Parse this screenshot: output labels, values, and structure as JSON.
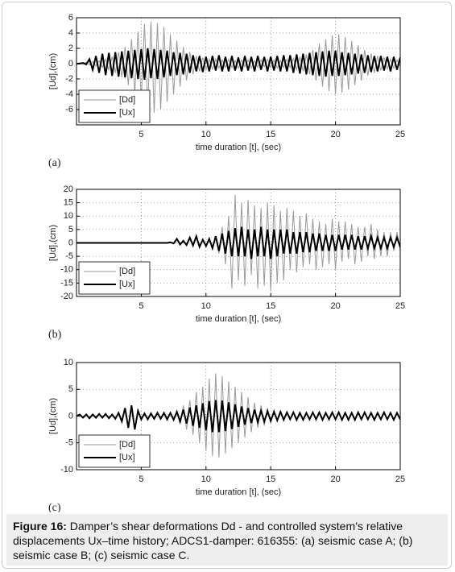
{
  "chart_data": [
    {
      "type": "line",
      "label": "(a)",
      "x_label": "time duration [t], (sec)",
      "y_label": "[Ud],(cm)",
      "xlim": [
        0,
        25
      ],
      "xticks": [
        5,
        10,
        15,
        20,
        25
      ],
      "ylim": [
        -8,
        6
      ],
      "yticks": [
        -6,
        -4,
        -2,
        0,
        2,
        4,
        6
      ],
      "grid": true,
      "legend": "lower left",
      "x": [
        0,
        0.25,
        0.5,
        0.75,
        1,
        1.25,
        1.5,
        1.75,
        2,
        2.25,
        2.5,
        2.75,
        3,
        3.25,
        3.5,
        3.75,
        4,
        4.25,
        4.5,
        4.75,
        5,
        5.25,
        5.5,
        5.75,
        6,
        6.25,
        6.5,
        6.75,
        7,
        7.25,
        7.5,
        7.75,
        8,
        8.25,
        8.5,
        8.75,
        9,
        9.25,
        9.5,
        9.75,
        10,
        10.25,
        10.5,
        10.75,
        11,
        11.25,
        11.5,
        11.75,
        12,
        12.25,
        12.5,
        12.75,
        13,
        13.25,
        13.5,
        13.75,
        14,
        14.25,
        14.5,
        14.75,
        15,
        15.25,
        15.5,
        15.75,
        16,
        16.25,
        16.5,
        16.75,
        17,
        17.25,
        17.5,
        17.75,
        18,
        18.25,
        18.5,
        18.75,
        19,
        19.25,
        19.5,
        19.75,
        20,
        20.25,
        20.5,
        20.75,
        21,
        21.25,
        21.5,
        21.75,
        22,
        22.25,
        22.5,
        22.75,
        23,
        23.25,
        23.5,
        23.75,
        24,
        24.25,
        24.5,
        24.75,
        25
      ],
      "series": [
        {
          "name": "[Dd]",
          "color": "#999999",
          "width": 1,
          "values": [
            0,
            0.1,
            -0.1,
            0.2,
            -0.2,
            0.3,
            -0.3,
            0.4,
            -0.5,
            0.6,
            -0.8,
            0.9,
            -1.2,
            1.5,
            -1.8,
            2.2,
            -2.8,
            3.2,
            -3.8,
            4.2,
            -4.8,
            5.2,
            -5.6,
            5.5,
            -6.4,
            5.3,
            -6,
            4.8,
            -5,
            3.8,
            -4,
            3,
            -3,
            2.2,
            -2.2,
            1.5,
            -1.4,
            1,
            -1,
            0.8,
            -0.8,
            0.6,
            -0.7,
            0.6,
            -0.6,
            0.5,
            -0.5,
            0.6,
            -0.5,
            0.4,
            -0.6,
            0.5,
            -0.4,
            0.5,
            -0.6,
            0.4,
            -0.5,
            0.5,
            -0.4,
            0.6,
            -0.5,
            0.5,
            -0.6,
            0.4,
            -0.5,
            0.6,
            -0.5,
            0.7,
            -0.8,
            0.9,
            -1,
            1.2,
            -1.4,
            1.8,
            -2.2,
            2.6,
            -3,
            3.2,
            -3.6,
            3.7,
            -4,
            3.8,
            -3.8,
            3.5,
            -3.4,
            3,
            -2.8,
            2.4,
            -2.2,
            1.8,
            -1.6,
            1.3,
            -1.2,
            1,
            -0.9,
            0.8,
            -0.7,
            0.6,
            -0.6,
            0.5,
            -0.4
          ]
        },
        {
          "name": "[Ux]",
          "color": "#000000",
          "width": 2,
          "values": [
            0,
            0,
            0.1,
            -0.1,
            0.6,
            -0.8,
            1,
            -1.2,
            1.3,
            -1.5,
            1.4,
            -1.6,
            1.5,
            -1.7,
            1.6,
            -1.8,
            1.7,
            -1.9,
            1.8,
            -2,
            1.9,
            -2.1,
            2,
            -1.9,
            1.9,
            -2,
            1.8,
            -1.8,
            1.7,
            -1.6,
            1.5,
            -1.5,
            1.4,
            -1.4,
            1.3,
            -1.2,
            1.1,
            -1,
            1,
            -1.1,
            0.9,
            -1,
            1,
            -0.9,
            1.1,
            -1,
            0.9,
            -1,
            1,
            -0.9,
            0.8,
            -1,
            1,
            -0.9,
            0.9,
            -1,
            1,
            -0.8,
            0.9,
            -1,
            0.9,
            -0.9,
            1,
            -1,
            1.1,
            -1,
            1.1,
            -1.2,
            1.2,
            -1.3,
            1.3,
            -1.4,
            1.4,
            -1.5,
            1.5,
            -1.6,
            1.6,
            -1.7,
            1.7,
            -1.6,
            1.7,
            -1.6,
            1.5,
            -1.5,
            1.4,
            -1.4,
            1.3,
            -1.3,
            1.2,
            -1.2,
            1.1,
            -1.1,
            1,
            -1,
            1,
            -0.9,
            0.9,
            -1,
            0.9,
            -0.8,
            0.8
          ]
        }
      ]
    },
    {
      "type": "line",
      "label": "(b)",
      "x_label": "time duration [t], (sec)",
      "y_label": "[Ud],(cm)",
      "xlim": [
        0,
        25
      ],
      "xticks": [
        5,
        10,
        15,
        20,
        25
      ],
      "ylim": [
        -20,
        20
      ],
      "yticks": [
        -20,
        -15,
        -10,
        -5,
        0,
        5,
        10,
        15,
        20
      ],
      "grid": true,
      "legend": "lower left",
      "x": [
        0,
        0.25,
        0.5,
        0.75,
        1,
        1.25,
        1.5,
        1.75,
        2,
        2.25,
        2.5,
        2.75,
        3,
        3.25,
        3.5,
        3.75,
        4,
        4.25,
        4.5,
        4.75,
        5,
        5.25,
        5.5,
        5.75,
        6,
        6.25,
        6.5,
        6.75,
        7,
        7.25,
        7.5,
        7.75,
        8,
        8.25,
        8.5,
        8.75,
        9,
        9.25,
        9.5,
        9.75,
        10,
        10.25,
        10.5,
        10.75,
        11,
        11.25,
        11.5,
        11.75,
        12,
        12.25,
        12.5,
        12.75,
        13,
        13.25,
        13.5,
        13.75,
        14,
        14.25,
        14.5,
        14.75,
        15,
        15.25,
        15.5,
        15.75,
        16,
        16.25,
        16.5,
        16.75,
        17,
        17.25,
        17.5,
        17.75,
        18,
        18.25,
        18.5,
        18.75,
        19,
        19.25,
        19.5,
        19.75,
        20,
        20.25,
        20.5,
        20.75,
        21,
        21.25,
        21.5,
        21.75,
        22,
        22.25,
        22.5,
        22.75,
        23,
        23.25,
        23.5,
        23.75,
        24,
        24.25,
        24.5,
        24.75,
        25
      ],
      "series": [
        {
          "name": "[Dd]",
          "color": "#999999",
          "width": 1,
          "values": [
            0,
            0,
            0,
            0,
            0,
            0,
            0,
            0,
            0,
            0,
            0,
            0,
            0,
            0,
            0,
            0,
            0,
            0,
            0,
            0,
            0,
            0,
            0,
            0,
            0,
            0,
            0,
            0,
            0,
            0.3,
            -0.3,
            1.5,
            -0.5,
            0.4,
            -0.6,
            1.2,
            -0.8,
            2,
            -1,
            0.8,
            -0.8,
            1.2,
            -1.5,
            2,
            -4,
            6,
            -8,
            10,
            -17,
            18,
            -14,
            15,
            -16,
            16,
            -12,
            14,
            -17,
            13,
            -16,
            15,
            -18,
            14,
            -15,
            12,
            -14,
            13,
            -10,
            12,
            -11,
            10,
            -9,
            11,
            -8,
            9,
            -10,
            8,
            -9,
            7,
            -8,
            9,
            -10,
            8,
            -7,
            8,
            -6,
            7,
            -8,
            6,
            -7,
            6,
            -5,
            7,
            -6,
            5,
            -5,
            4,
            -5,
            4,
            -3,
            4,
            -3
          ]
        },
        {
          "name": "[Ux]",
          "color": "#000000",
          "width": 2,
          "values": [
            0,
            0,
            0,
            0,
            0,
            0,
            0,
            0,
            0,
            0,
            0,
            0,
            0,
            0,
            0,
            0,
            0,
            0,
            0,
            0,
            0,
            0,
            0,
            0,
            0,
            0,
            0,
            0,
            0,
            0.2,
            -0.2,
            1.5,
            -0.6,
            0.8,
            -0.8,
            2,
            -1,
            2.5,
            -1.5,
            1.2,
            -1.2,
            1.5,
            -2,
            2.5,
            -3,
            3.5,
            -4,
            4.5,
            -5,
            5.5,
            -5,
            6,
            -5,
            5,
            -6,
            5,
            -5,
            6,
            -5,
            5,
            -6,
            5,
            -5,
            5,
            -4,
            5,
            -4,
            4,
            -4,
            4,
            -3.5,
            4,
            -3.5,
            3.5,
            -3,
            3.5,
            -3,
            3,
            -3,
            3,
            -3,
            3,
            -2.5,
            3,
            -2.5,
            3,
            -2.5,
            2.5,
            -2.5,
            2.5,
            -2,
            2.5,
            -2,
            2,
            -2,
            2,
            -2,
            2,
            -1.5,
            2,
            -1.5
          ]
        }
      ]
    },
    {
      "type": "line",
      "label": "(c)",
      "x_label": "time duration [t], (sec)",
      "y_label": "[Ud],(cm)",
      "xlim": [
        0,
        25
      ],
      "xticks": [
        5,
        10,
        15,
        20,
        25
      ],
      "ylim": [
        -10,
        10
      ],
      "yticks": [
        -10,
        -5,
        0,
        5,
        10
      ],
      "grid": true,
      "legend": "lower left",
      "x": [
        0,
        0.25,
        0.5,
        0.75,
        1,
        1.25,
        1.5,
        1.75,
        2,
        2.25,
        2.5,
        2.75,
        3,
        3.25,
        3.5,
        3.75,
        4,
        4.25,
        4.5,
        4.75,
        5,
        5.25,
        5.5,
        5.75,
        6,
        6.25,
        6.5,
        6.75,
        7,
        7.25,
        7.5,
        7.75,
        8,
        8.25,
        8.5,
        8.75,
        9,
        9.25,
        9.5,
        9.75,
        10,
        10.25,
        10.5,
        10.75,
        11,
        11.25,
        11.5,
        11.75,
        12,
        12.25,
        12.5,
        12.75,
        13,
        13.25,
        13.5,
        13.75,
        14,
        14.25,
        14.5,
        14.75,
        15,
        15.25,
        15.5,
        15.75,
        16,
        16.25,
        16.5,
        16.75,
        17,
        17.25,
        17.5,
        17.75,
        18,
        18.25,
        18.5,
        18.75,
        19,
        19.25,
        19.5,
        19.75,
        20,
        20.25,
        20.5,
        20.75,
        21,
        21.25,
        21.5,
        21.75,
        22,
        22.25,
        22.5,
        22.75,
        23,
        23.25,
        23.5,
        23.75,
        24,
        24.25,
        24.5,
        24.75,
        25
      ],
      "series": [
        {
          "name": "[Dd]",
          "color": "#999999",
          "width": 1,
          "values": [
            0,
            0.3,
            -0.3,
            0.4,
            -0.3,
            0.4,
            -0.4,
            0.3,
            -0.4,
            0.4,
            -0.3,
            0.4,
            -0.5,
            0.6,
            -1,
            1.5,
            -2,
            1.8,
            -2.5,
            1.2,
            -0.8,
            0.6,
            -0.5,
            0.6,
            -0.6,
            0.8,
            -0.6,
            0.7,
            -0.8,
            0.6,
            -0.8,
            1,
            -1.5,
            2,
            -2.5,
            3,
            -3.5,
            4.5,
            -5,
            5.5,
            -6.5,
            7,
            -7.5,
            8,
            -7.8,
            7.5,
            -7,
            6.5,
            -6,
            5.5,
            -5,
            4.5,
            -4,
            3.5,
            -3,
            2.5,
            -2.2,
            2,
            -1.8,
            1.5,
            -1.3,
            1.2,
            -1,
            0.9,
            -0.8,
            0.7,
            -0.7,
            0.6,
            -0.6,
            0.7,
            -0.6,
            0.5,
            -0.6,
            0.6,
            -0.5,
            0.6,
            -0.6,
            0.5,
            -0.6,
            0.6,
            -0.5,
            0.6,
            -0.7,
            0.6,
            -0.6,
            0.5,
            -0.6,
            0.6,
            -0.5,
            0.6,
            -0.5,
            0.5,
            -0.6,
            0.5,
            -0.5,
            0.6,
            -0.5,
            0.5,
            -0.6,
            0.5,
            -0.5
          ]
        },
        {
          "name": "[Ux]",
          "color": "#000000",
          "width": 2,
          "values": [
            0,
            0.3,
            -0.3,
            0.3,
            -0.4,
            0.3,
            -0.3,
            0.4,
            -0.3,
            0.4,
            -0.4,
            0.3,
            -0.5,
            0.6,
            -1,
            1.5,
            -2.2,
            2,
            -2.5,
            1,
            -0.6,
            0.5,
            -0.6,
            0.5,
            -0.5,
            0.6,
            -0.5,
            0.6,
            -0.6,
            0.6,
            -0.7,
            0.8,
            -1,
            1.2,
            -1.4,
            1.6,
            -1.8,
            2,
            -2.2,
            2.4,
            -2.6,
            2.8,
            -3,
            3,
            -3,
            2.9,
            -2.8,
            2.6,
            -2.4,
            2.2,
            -2,
            1.8,
            -1.6,
            1.5,
            -1.3,
            1.2,
            -1.1,
            1,
            -1,
            0.9,
            -0.9,
            0.8,
            -0.8,
            0.8,
            -0.7,
            0.7,
            -0.6,
            0.7,
            -0.7,
            0.6,
            -0.7,
            0.6,
            -0.6,
            0.7,
            -0.6,
            0.7,
            -0.7,
            0.6,
            -0.6,
            0.7,
            -0.6,
            0.7,
            -0.7,
            0.6,
            -0.7,
            0.6,
            -0.7,
            0.7,
            -0.6,
            0.7,
            -0.6,
            0.6,
            -0.7,
            0.6,
            -0.6,
            0.7,
            -0.6,
            0.6,
            -0.7,
            0.6,
            -0.6
          ]
        }
      ]
    }
  ],
  "caption": {
    "label": "Figure 16:",
    "text": "Damper’s shear deformations Dd - and controlled system’s relative displacements Ux–time history; ADCS1-damper: 616355: (a) seismic case A; (b) seismic case B; (c) seismic case C."
  }
}
